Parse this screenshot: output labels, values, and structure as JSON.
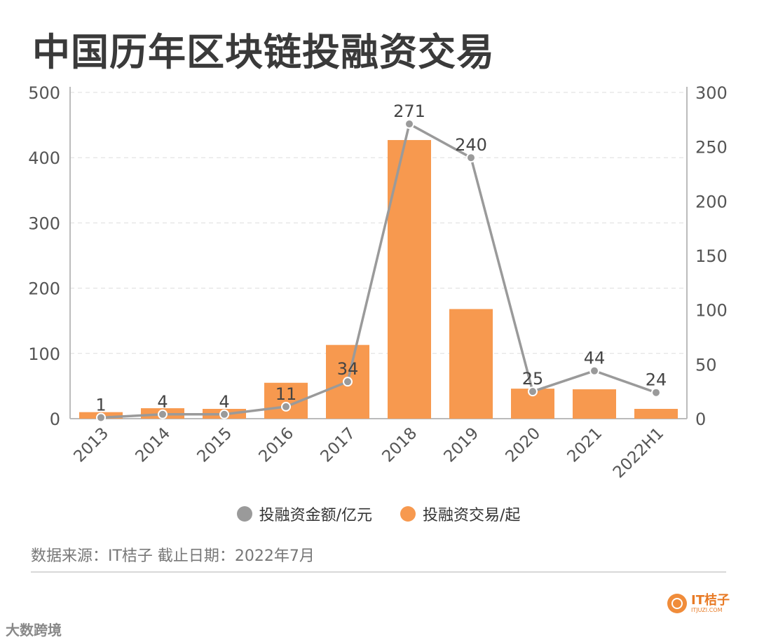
{
  "title": "中国历年区块链投融资交易",
  "source": "数据来源：IT桔子 截止日期：2022年7月",
  "logo": {
    "name": "IT桔子",
    "sub": "ITJUZI.COM"
  },
  "corner_mark": "大数跨境",
  "colors": {
    "bar": "#f7994f",
    "line": "#9a9a9a",
    "axis": "#bbbbbb",
    "grid": "#dddddd"
  },
  "chart_data": {
    "type": "bar",
    "categories": [
      "2013",
      "2014",
      "2015",
      "2016",
      "2017",
      "2018",
      "2019",
      "2020",
      "2021",
      "2022H1"
    ],
    "series": [
      {
        "name": "投融资交易/起",
        "type": "bar",
        "axis": "left",
        "values": [
          10,
          16,
          15,
          55,
          113,
          427,
          168,
          46,
          45,
          15
        ]
      },
      {
        "name": "投融资金额/亿元",
        "type": "line",
        "axis": "right",
        "values": [
          1,
          4,
          4,
          11,
          34,
          271,
          240,
          25,
          44,
          24
        ],
        "labels": [
          "1",
          "4",
          "4",
          "11",
          "34",
          "271",
          "240",
          "25",
          "44",
          "24"
        ]
      }
    ],
    "y_left": {
      "min": 0,
      "max": 500,
      "ticks": [
        "0",
        "100",
        "200",
        "300",
        "400",
        "500"
      ]
    },
    "y_right": {
      "min": 0,
      "max": 300,
      "ticks": [
        "0",
        "50",
        "100",
        "150",
        "200",
        "250",
        "300"
      ]
    },
    "grid": true,
    "legend": [
      "投融资金额/亿元",
      "投融资交易/起"
    ],
    "legend_position": "bottom"
  }
}
